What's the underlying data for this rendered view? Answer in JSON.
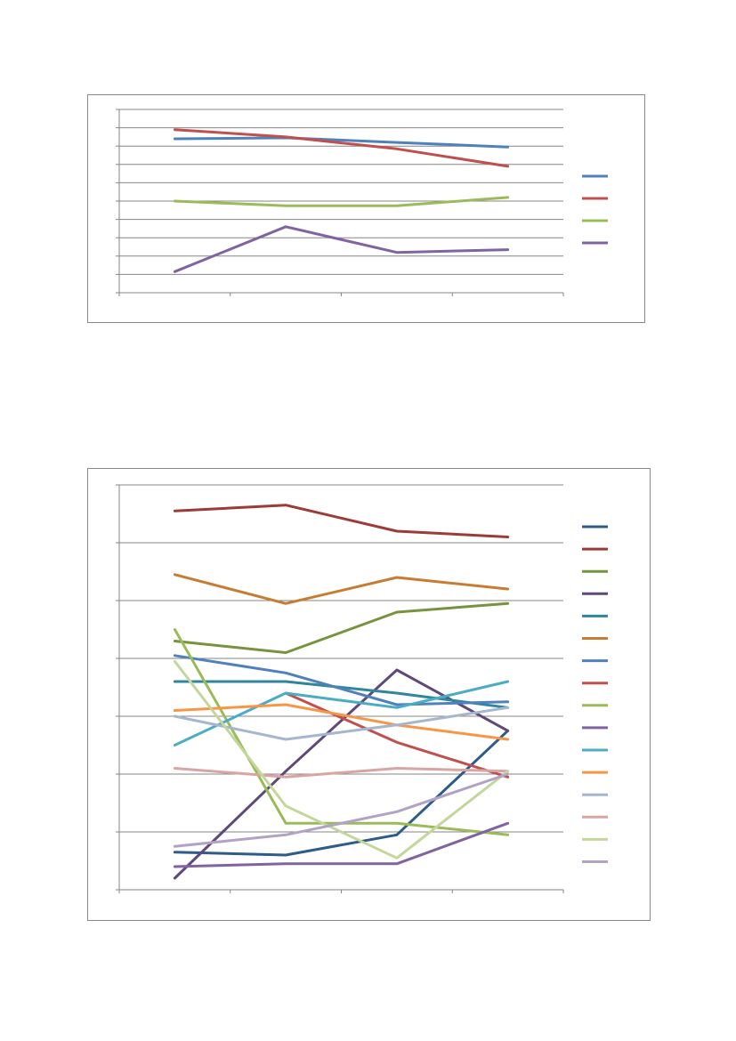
{
  "chart_data": [
    {
      "type": "line",
      "title": "",
      "xlabel": "",
      "ylabel": "",
      "categories": [
        "",
        "",
        "",
        ""
      ],
      "ylim": [
        0,
        10
      ],
      "grid": true,
      "legend_position": "right",
      "series": [
        {
          "name": "",
          "color": "#4F81BD",
          "values": [
            8.4,
            8.45,
            8.2,
            7.95
          ]
        },
        {
          "name": "",
          "color": "#C0504D",
          "values": [
            8.9,
            8.5,
            7.85,
            6.9
          ]
        },
        {
          "name": "",
          "color": "#9BBB59",
          "values": [
            5.0,
            4.75,
            4.75,
            5.2
          ]
        },
        {
          "name": "",
          "color": "#8064A2",
          "values": [
            1.15,
            3.6,
            2.2,
            2.35
          ]
        }
      ]
    },
    {
      "type": "line",
      "title": "",
      "xlabel": "",
      "ylabel": "",
      "categories": [
        "",
        "",
        "",
        ""
      ],
      "ylim": [
        0,
        7
      ],
      "grid": true,
      "legend_position": "right",
      "series": [
        {
          "name": "",
          "color": "#2E5C8A",
          "values": [
            0.65,
            0.6,
            0.95,
            2.75
          ]
        },
        {
          "name": "",
          "color": "#9C3B38",
          "values": [
            6.55,
            6.65,
            6.2,
            6.1
          ]
        },
        {
          "name": "",
          "color": "#77933C",
          "values": [
            4.3,
            4.1,
            4.8,
            4.95
          ]
        },
        {
          "name": "",
          "color": "#5F497A",
          "values": [
            0.2,
            2.05,
            3.8,
            2.75
          ]
        },
        {
          "name": "",
          "color": "#31859C",
          "values": [
            3.6,
            3.6,
            3.4,
            3.15
          ]
        },
        {
          "name": "",
          "color": "#C87C32",
          "values": [
            5.45,
            4.95,
            5.4,
            5.2
          ]
        },
        {
          "name": "",
          "color": "#4F81BD",
          "values": [
            4.05,
            3.75,
            3.2,
            3.25
          ]
        },
        {
          "name": "",
          "color": "#C0504D",
          "values": [
            null,
            3.4,
            2.55,
            1.95
          ]
        },
        {
          "name": "",
          "color": "#9BBB59",
          "values": [
            4.5,
            1.15,
            1.15,
            0.95
          ]
        },
        {
          "name": "",
          "color": "#8064A2",
          "values": [
            0.4,
            0.45,
            0.45,
            1.15
          ]
        },
        {
          "name": "",
          "color": "#4BACC6",
          "values": [
            2.5,
            3.4,
            3.15,
            3.6
          ]
        },
        {
          "name": "",
          "color": "#F79646",
          "values": [
            3.1,
            3.2,
            2.85,
            2.6
          ]
        },
        {
          "name": "",
          "color": "#A5B6D0",
          "values": [
            3.0,
            2.6,
            2.85,
            3.15
          ]
        },
        {
          "name": "",
          "color": "#D9A5A3",
          "values": [
            2.1,
            1.95,
            2.1,
            2.05
          ]
        },
        {
          "name": "",
          "color": "#C3D69B",
          "values": [
            3.95,
            1.45,
            0.55,
            2.05
          ]
        },
        {
          "name": "",
          "color": "#B3A2C7",
          "values": [
            0.75,
            0.95,
            1.35,
            2.0
          ]
        }
      ]
    }
  ]
}
